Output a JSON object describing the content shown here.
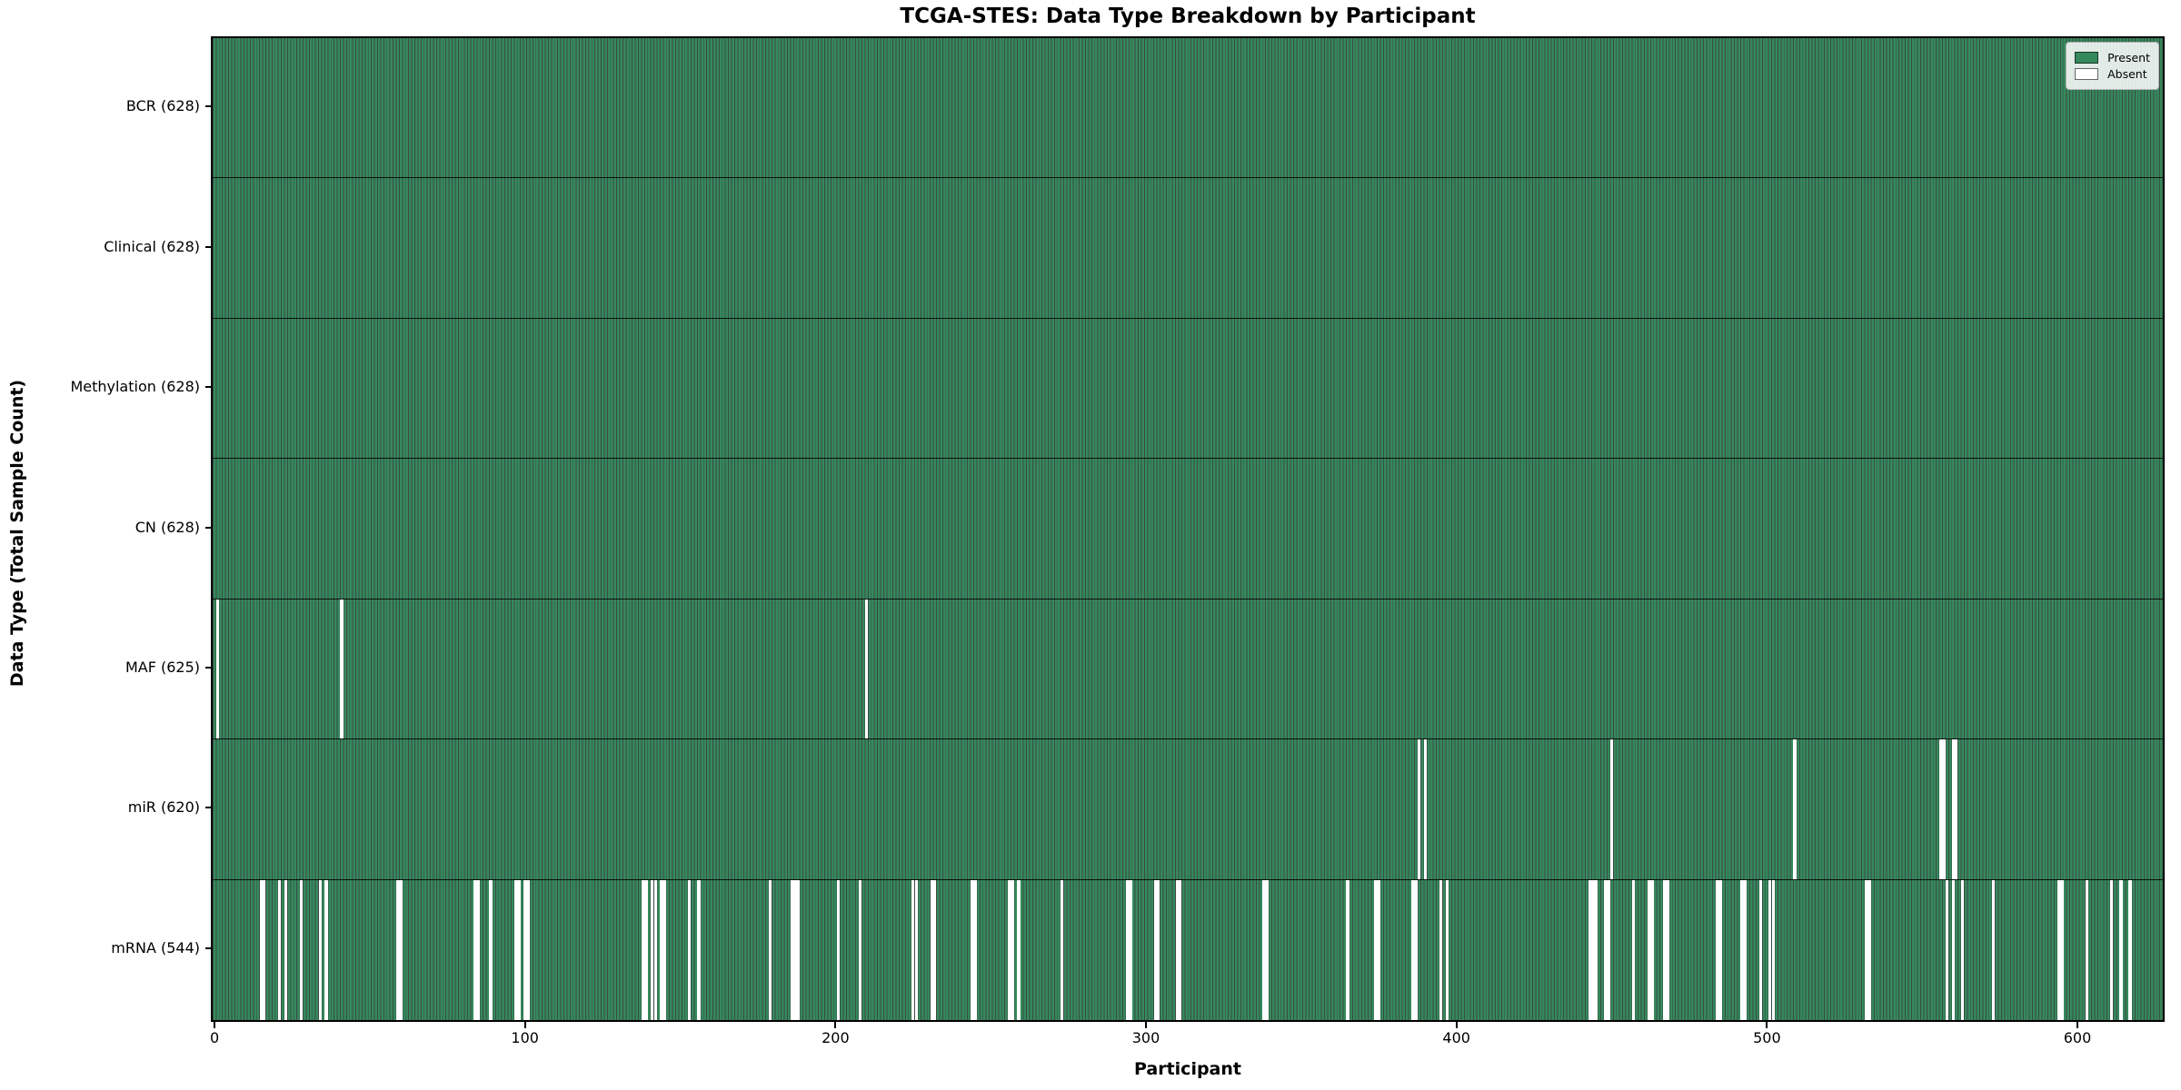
{
  "title": "TCGA-STES: Data Type Breakdown by Participant",
  "axes": {
    "x": {
      "label": "Participant",
      "ticks": [
        "0",
        "100",
        "200",
        "300",
        "400",
        "500",
        "600"
      ],
      "tick_values": [
        0,
        100,
        200,
        300,
        400,
        500,
        600
      ]
    },
    "y": {
      "label": "Data Type (Total Sample Count)"
    }
  },
  "legend": {
    "items": [
      {
        "label": "Present",
        "color": "#35895d"
      },
      {
        "label": "Absent",
        "color": "#ffffff"
      }
    ]
  },
  "colors": {
    "present": "#35895d",
    "absent": "#ffffff",
    "bar_edge": "rgba(10,30,20,0.8)"
  },
  "chart_data": {
    "type": "heatmap",
    "subtype": "presence-absence-matrix",
    "title": "TCGA-STES: Data Type Breakdown by Participant",
    "xlabel": "Participant",
    "ylabel": "Data Type (Total Sample Count)",
    "n_participants": 628,
    "x_range": [
      -0.6,
      627.5
    ],
    "x_ticks": [
      0,
      100,
      200,
      300,
      400,
      500,
      600
    ],
    "legend_position": "upper right",
    "grid": false,
    "rows": [
      {
        "label": "BCR",
        "count": 628,
        "display": "BCR (628)",
        "absent": []
      },
      {
        "label": "Clinical",
        "count": 628,
        "display": "Clinical (628)",
        "absent": []
      },
      {
        "label": "Methylation",
        "count": 628,
        "display": "Methylation (628)",
        "absent": []
      },
      {
        "label": "CN",
        "count": 628,
        "display": "CN (628)",
        "absent": []
      },
      {
        "label": "MAF",
        "count": 625,
        "display": "MAF (625)",
        "absent": [
          1,
          41,
          210
        ]
      },
      {
        "label": "miR",
        "count": 620,
        "display": "miR (620)",
        "absent": [
          388,
          390,
          450,
          509,
          556,
          557,
          560,
          561
        ]
      },
      {
        "label": "mRNA",
        "count": 544,
        "display": "mRNA (544)",
        "absent": [
          15,
          16,
          21,
          23,
          28,
          34,
          36,
          59,
          60,
          84,
          85,
          89,
          97,
          98,
          100,
          101,
          138,
          139,
          141,
          142,
          144,
          145,
          153,
          156,
          179,
          186,
          187,
          188,
          201,
          208,
          225,
          226,
          231,
          232,
          244,
          245,
          256,
          257,
          259,
          273,
          294,
          295,
          303,
          304,
          310,
          311,
          338,
          339,
          365,
          374,
          375,
          386,
          387,
          395,
          397,
          443,
          444,
          445,
          448,
          449,
          457,
          462,
          463,
          467,
          468,
          484,
          485,
          492,
          493,
          498,
          501,
          502,
          532,
          533,
          558,
          560,
          563,
          573,
          594,
          595,
          603,
          611,
          614,
          617
        ]
      }
    ]
  }
}
